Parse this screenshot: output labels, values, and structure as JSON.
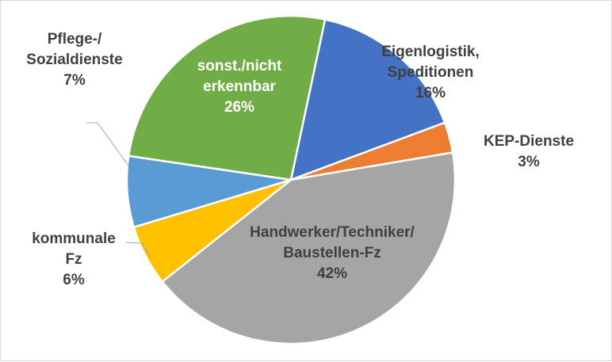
{
  "chart_data": {
    "type": "pie",
    "title": "",
    "start_angle_deg": 12,
    "direction": "clockwise",
    "slices": [
      {
        "label_lines": [
          "Eigenlogistik,",
          "Speditionen"
        ],
        "value": 16,
        "value_label": "16%",
        "color": "#4472c4",
        "label_color": "#404040",
        "label_position": "inside"
      },
      {
        "label_lines": [
          "KEP-Dienste"
        ],
        "value": 3,
        "value_label": "3%",
        "color": "#ed7d31",
        "label_color": "#404040",
        "label_position": "outside"
      },
      {
        "label_lines": [
          "Handwerker/Techniker/",
          "Baustellen-Fz"
        ],
        "value": 42,
        "value_label": "42%",
        "color": "#a5a5a5",
        "label_color": "#404040",
        "label_position": "inside"
      },
      {
        "label_lines": [
          "kommunale",
          "Fz"
        ],
        "value": 6,
        "value_label": "6%",
        "color": "#ffc000",
        "label_color": "#404040",
        "label_position": "outside"
      },
      {
        "label_lines": [
          "Pflege-/",
          "Sozialdienste"
        ],
        "value": 7,
        "value_label": "7%",
        "color": "#5b9bd5",
        "label_color": "#404040",
        "label_position": "outside"
      },
      {
        "label_lines": [
          "sonst./nicht",
          "erkennbar"
        ],
        "value": 26,
        "value_label": "26%",
        "color": "#70ad47",
        "label_color": "#ffffff",
        "label_position": "inside"
      }
    ]
  }
}
